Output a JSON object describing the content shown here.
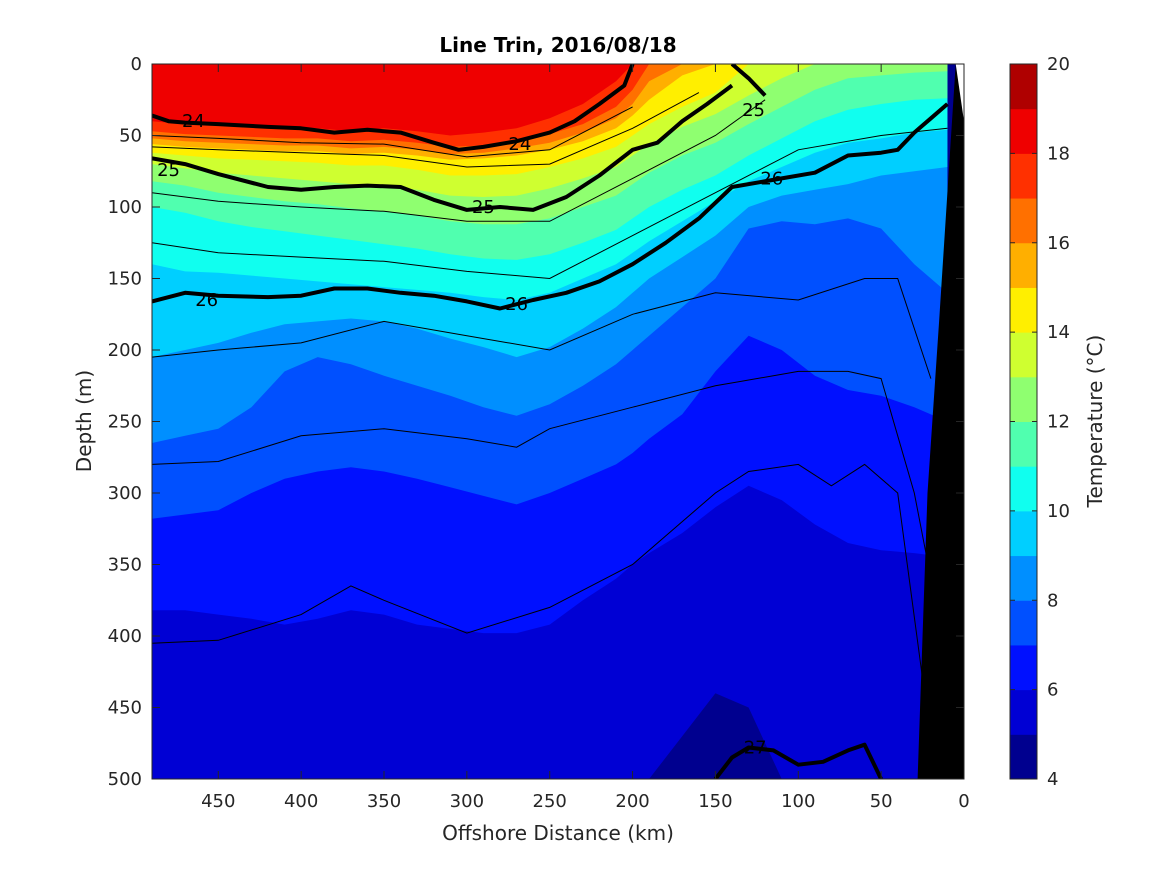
{
  "colors": {
    "colormap": [
      "#00008f",
      "#0000d4",
      "#0010ff",
      "#0050ff",
      "#008fff",
      "#00cfff",
      "#10ffef",
      "#50ffaf",
      "#8fff70",
      "#cfff30",
      "#ffef00",
      "#ffaf00",
      "#ff7000",
      "#ff3000",
      "#ef0000",
      "#af0000"
    ],
    "topography": "#000000",
    "contour_line": "#000000",
    "axis": "#262626"
  },
  "chart_data": {
    "type": "heatmap",
    "title": "Line Trin, 2016/08/18",
    "xlabel": "Offshore Distance (km)",
    "ylabel": "Depth (m)",
    "colorbar_label": "Temperature (°C)",
    "xlim": [
      490,
      0
    ],
    "ylim": [
      0,
      500
    ],
    "clim": [
      4,
      20
    ],
    "colorbar_step": 1,
    "x_ticks": [
      450,
      400,
      350,
      300,
      250,
      200,
      150,
      100,
      50,
      0
    ],
    "y_ticks": [
      0,
      50,
      100,
      150,
      200,
      250,
      300,
      350,
      400,
      450,
      500
    ],
    "colorbar_ticks": [
      4,
      6,
      8,
      10,
      12,
      14,
      16,
      18,
      20
    ],
    "temperature_surfaces": {
      "x": [
        490,
        470,
        450,
        430,
        410,
        390,
        370,
        350,
        330,
        310,
        290,
        270,
        250,
        230,
        210,
        200,
        190,
        170,
        150,
        130,
        110,
        90,
        70,
        50,
        30,
        10
      ],
      "isotherms": [
        {
          "t": 18,
          "depth": [
            40,
            42,
            43,
            44,
            44,
            45,
            47,
            45,
            47,
            50,
            48,
            45,
            38,
            28,
            12,
            0,
            0,
            0,
            0,
            0,
            0,
            0,
            0,
            0,
            0,
            0
          ]
        },
        {
          "t": 17,
          "depth": [
            47,
            49,
            50,
            51,
            52,
            52,
            54,
            53,
            55,
            58,
            57,
            54,
            49,
            42,
            30,
            18,
            0,
            0,
            0,
            0,
            0,
            0,
            0,
            0,
            0,
            0
          ]
        },
        {
          "t": 16,
          "depth": [
            52,
            54,
            55,
            56,
            57,
            57,
            59,
            58,
            60,
            63,
            62,
            59,
            55,
            48,
            38,
            28,
            12,
            0,
            0,
            0,
            0,
            0,
            0,
            0,
            0,
            0
          ]
        },
        {
          "t": 15,
          "depth": [
            56,
            58,
            59,
            60,
            61,
            61,
            63,
            62,
            64,
            67,
            66,
            64,
            60,
            54,
            45,
            36,
            25,
            8,
            0,
            0,
            0,
            0,
            0,
            0,
            0,
            0
          ]
        },
        {
          "t": 14,
          "depth": [
            62,
            64,
            66,
            67,
            68,
            69,
            71,
            71,
            74,
            78,
            78,
            77,
            72,
            66,
            58,
            50,
            42,
            30,
            20,
            0,
            0,
            0,
            0,
            0,
            0,
            0
          ]
        },
        {
          "t": 13,
          "depth": [
            70,
            73,
            76,
            78,
            80,
            82,
            84,
            85,
            88,
            92,
            93,
            92,
            87,
            80,
            72,
            64,
            56,
            44,
            35,
            22,
            10,
            0,
            0,
            0,
            0,
            0
          ]
        },
        {
          "t": 12,
          "depth": [
            82,
            85,
            90,
            93,
            96,
            98,
            101,
            103,
            106,
            110,
            112,
            112,
            108,
            100,
            92,
            84,
            76,
            64,
            55,
            42,
            30,
            18,
            10,
            8,
            6,
            5
          ]
        },
        {
          "t": 11,
          "depth": [
            100,
            104,
            110,
            114,
            117,
            120,
            123,
            126,
            129,
            133,
            136,
            137,
            133,
            125,
            116,
            108,
            100,
            88,
            78,
            64,
            52,
            40,
            32,
            28,
            25,
            24
          ]
        },
        {
          "t": 10,
          "depth": [
            140,
            145,
            146,
            148,
            150,
            152,
            154,
            156,
            158,
            160,
            163,
            165,
            160,
            150,
            140,
            132,
            124,
            110,
            96,
            82,
            72,
            62,
            55,
            52,
            48,
            46
          ]
        },
        {
          "t": 9,
          "depth": [
            205,
            200,
            195,
            188,
            182,
            180,
            178,
            180,
            185,
            192,
            198,
            205,
            198,
            185,
            170,
            160,
            150,
            135,
            120,
            100,
            92,
            88,
            84,
            78,
            75,
            72
          ]
        },
        {
          "t": 8,
          "depth": [
            265,
            260,
            255,
            240,
            215,
            205,
            210,
            218,
            225,
            232,
            240,
            246,
            238,
            225,
            210,
            200,
            190,
            170,
            150,
            115,
            110,
            112,
            108,
            115,
            140,
            160
          ]
        },
        {
          "t": 7,
          "depth": [
            318,
            315,
            312,
            300,
            290,
            285,
            282,
            285,
            290,
            296,
            302,
            308,
            300,
            290,
            280,
            272,
            262,
            245,
            215,
            190,
            200,
            218,
            228,
            232,
            240,
            250
          ]
        },
        {
          "t": 6,
          "depth": [
            382,
            382,
            385,
            388,
            392,
            388,
            382,
            385,
            392,
            395,
            398,
            398,
            392,
            375,
            360,
            350,
            342,
            328,
            310,
            295,
            305,
            322,
            335,
            340,
            342,
            345
          ]
        },
        {
          "t": 5,
          "depth": [
            500,
            500,
            500,
            500,
            500,
            500,
            500,
            500,
            500,
            500,
            500,
            500,
            500,
            500,
            500,
            500,
            500,
            470,
            440,
            450,
            500,
            500,
            500,
            500,
            500,
            500
          ]
        }
      ]
    },
    "density_contours": [
      {
        "label": "24",
        "x": [
          490,
          480,
          470,
          450,
          420,
          400,
          380,
          360,
          340,
          320,
          305,
          290,
          270,
          250,
          235,
          220,
          205,
          200
        ],
        "depth": [
          36,
          40,
          41,
          42,
          44,
          45,
          48,
          46,
          48,
          55,
          60,
          58,
          54,
          48,
          40,
          28,
          15,
          0
        ]
      },
      {
        "label": "24",
        "x": [
          140,
          130,
          120
        ],
        "depth": [
          0,
          10,
          22
        ]
      },
      {
        "label": "25",
        "x": [
          490,
          470,
          450,
          420,
          400,
          380,
          360,
          340,
          320,
          300,
          280,
          260,
          240,
          220,
          200,
          185,
          170,
          155,
          140
        ],
        "depth": [
          66,
          70,
          77,
          86,
          88,
          86,
          85,
          86,
          95,
          102,
          100,
          102,
          93,
          78,
          60,
          55,
          40,
          28,
          15
        ]
      },
      {
        "label": "26",
        "x": [
          490,
          470,
          450,
          420,
          400,
          380,
          360,
          340,
          320,
          300,
          280,
          260,
          240,
          220,
          200,
          180,
          160,
          140,
          110,
          90,
          70,
          50,
          40,
          30,
          20,
          10
        ],
        "depth": [
          166,
          160,
          162,
          163,
          162,
          157,
          157,
          160,
          162,
          166,
          171,
          165,
          160,
          152,
          140,
          125,
          108,
          86,
          80,
          76,
          64,
          62,
          60,
          48,
          38,
          28
        ]
      },
      {
        "label": "27",
        "x": [
          150,
          140,
          130,
          115,
          100,
          85,
          70,
          60,
          50
        ],
        "depth": [
          500,
          485,
          478,
          480,
          490,
          488,
          480,
          476,
          500
        ]
      }
    ],
    "minor_contours": [
      {
        "x": [
          490,
          450,
          400,
          350,
          300,
          250,
          200
        ],
        "depth": [
          50,
          52,
          55,
          56,
          65,
          60,
          30
        ]
      },
      {
        "x": [
          490,
          450,
          400,
          350,
          300,
          250,
          200,
          160
        ],
        "depth": [
          58,
          60,
          62,
          64,
          72,
          70,
          45,
          20
        ]
      },
      {
        "x": [
          490,
          450,
          400,
          350,
          300,
          250,
          200,
          150,
          120
        ],
        "depth": [
          90,
          96,
          100,
          103,
          110,
          110,
          80,
          50,
          25
        ]
      },
      {
        "x": [
          490,
          450,
          400,
          350,
          300,
          250,
          200,
          150,
          100,
          50,
          10
        ],
        "depth": [
          125,
          132,
          135,
          138,
          145,
          150,
          120,
          90,
          60,
          50,
          45
        ]
      },
      {
        "x": [
          490,
          450,
          400,
          350,
          300,
          250,
          200,
          150,
          100,
          60,
          40,
          20
        ],
        "depth": [
          205,
          200,
          195,
          180,
          190,
          200,
          175,
          160,
          165,
          150,
          150,
          220
        ]
      },
      {
        "x": [
          490,
          450,
          400,
          350,
          300,
          270,
          250,
          200,
          150,
          100,
          70,
          50,
          30,
          20
        ],
        "depth": [
          280,
          278,
          260,
          255,
          262,
          268,
          255,
          240,
          225,
          215,
          215,
          220,
          300,
          360
        ]
      },
      {
        "x": [
          490,
          450,
          400,
          370,
          350,
          300,
          250,
          200,
          150,
          130,
          100,
          80,
          60,
          40,
          25
        ],
        "depth": [
          405,
          403,
          385,
          365,
          375,
          398,
          380,
          350,
          300,
          285,
          280,
          295,
          280,
          300,
          430
        ]
      }
    ],
    "contour_labels": [
      {
        "text": "24",
        "x": 465,
        "depth": 40
      },
      {
        "text": "24",
        "x": 268,
        "depth": 56
      },
      {
        "text": "25",
        "x": 127,
        "depth": 32
      },
      {
        "text": "25",
        "x": 480,
        "depth": 74
      },
      {
        "text": "25",
        "x": 290,
        "depth": 100
      },
      {
        "text": "26",
        "x": 116,
        "depth": 80
      },
      {
        "text": "26",
        "x": 457,
        "depth": 165
      },
      {
        "text": "26",
        "x": 270,
        "depth": 168
      },
      {
        "text": "27",
        "x": 126,
        "depth": 478
      }
    ]
  }
}
